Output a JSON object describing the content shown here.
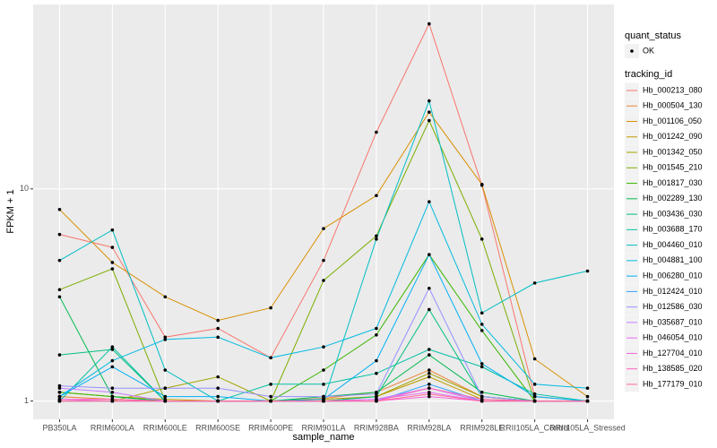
{
  "chart_data": {
    "type": "line",
    "log_y": true,
    "grid": true,
    "legend_position": "right",
    "points": true,
    "x_label": "sample_name",
    "y_label": "FPKM + 1",
    "point_legend": {
      "title": "quant_status",
      "levels": [
        "OK"
      ]
    },
    "legend_title": "tracking_id",
    "categories": [
      "PB350LA",
      "RRIM600LA",
      "RRIM600LE",
      "RRIM600SE",
      "RRIM600PE",
      "RRIM901LA",
      "RRIM928BA",
      "RRIM928LA",
      "RRIM928LE",
      "RRII105LA_Control",
      "RRII105LA_Stressed"
    ],
    "ylim": [
      0.82,
      74
    ],
    "yticks": [
      1,
      10
    ],
    "series": [
      {
        "name": "Hb_000213_080",
        "color": "#F8766D",
        "values": [
          6.1,
          5.3,
          2.0,
          2.2,
          1.6,
          4.6,
          18.5,
          60,
          10.4,
          1.05,
          1.0
        ]
      },
      {
        "name": "Hb_000504_130",
        "color": "#EA8331",
        "values": [
          1.05,
          1.02,
          1.0,
          1.0,
          1.0,
          1.03,
          1.1,
          1.4,
          1.05,
          1.0,
          1.0
        ]
      },
      {
        "name": "Hb_001106_050",
        "color": "#D89000",
        "values": [
          8.0,
          4.5,
          3.1,
          2.4,
          2.75,
          6.5,
          9.3,
          23,
          10.5,
          1.58,
          1.05
        ]
      },
      {
        "name": "Hb_001242_090",
        "color": "#C09B00",
        "values": [
          1.1,
          1.05,
          1.02,
          1.0,
          1.0,
          1.02,
          1.05,
          1.3,
          1.02,
          1.0,
          1.0
        ]
      },
      {
        "name": "Hb_001342_050",
        "color": "#A3A500",
        "values": [
          1.0,
          1.0,
          1.15,
          1.3,
          1.0,
          1.0,
          1.05,
          1.35,
          1.05,
          1.0,
          1.0
        ]
      },
      {
        "name": "Hb_001545_210",
        "color": "#7CAE00",
        "values": [
          3.35,
          4.2,
          1.0,
          1.0,
          1.0,
          3.7,
          6.0,
          21,
          5.8,
          1.0,
          1.0
        ]
      },
      {
        "name": "Hb_001817_030",
        "color": "#39B600",
        "values": [
          1.1,
          1.05,
          1.0,
          1.0,
          1.0,
          1.4,
          2.05,
          4.9,
          2.15,
          1.0,
          1.0
        ]
      },
      {
        "name": "Hb_002289_130",
        "color": "#00BB4E",
        "values": [
          3.1,
          1.05,
          1.0,
          1.0,
          1.0,
          1.05,
          1.1,
          1.65,
          1.1,
          1.0,
          1.0
        ]
      },
      {
        "name": "Hb_003436_030",
        "color": "#00BF7D",
        "values": [
          1.65,
          1.75,
          1.0,
          1.0,
          1.0,
          1.0,
          1.05,
          2.7,
          1.05,
          1.0,
          1.0
        ]
      },
      {
        "name": "Hb_003688_170",
        "color": "#00C1A3",
        "values": [
          1.0,
          1.8,
          1.0,
          1.0,
          1.2,
          1.2,
          1.35,
          1.75,
          1.45,
          1.08,
          1.0
        ]
      },
      {
        "name": "Hb_004460_010",
        "color": "#00BFC4",
        "values": [
          4.6,
          6.4,
          1.4,
          1.0,
          1.0,
          1.0,
          5.8,
          26,
          2.6,
          3.6,
          4.1
        ]
      },
      {
        "name": "Hb_004881_100",
        "color": "#00BAE0",
        "values": [
          1.05,
          1.55,
          1.95,
          2.0,
          1.6,
          1.8,
          2.2,
          8.7,
          2.3,
          1.2,
          1.15
        ]
      },
      {
        "name": "Hb_006280_010",
        "color": "#00B0F6",
        "values": [
          1.05,
          1.45,
          1.05,
          1.05,
          1.0,
          1.02,
          1.55,
          4.9,
          1.5,
          1.05,
          1.0
        ]
      },
      {
        "name": "Hb_012424_010",
        "color": "#35A2FF",
        "values": [
          1.0,
          1.0,
          1.0,
          1.0,
          1.0,
          1.0,
          1.0,
          1.2,
          1.0,
          1.0,
          1.0
        ]
      },
      {
        "name": "Hb_012586_030",
        "color": "#9590FF",
        "values": [
          1.18,
          1.15,
          1.15,
          1.15,
          1.05,
          1.05,
          1.08,
          3.4,
          1.05,
          1.0,
          1.0
        ]
      },
      {
        "name": "Hb_035687_010",
        "color": "#C77CFF",
        "values": [
          1.15,
          1.1,
          1.0,
          1.0,
          1.0,
          1.0,
          1.02,
          1.15,
          1.0,
          1.0,
          1.0
        ]
      },
      {
        "name": "Hb_046054_010",
        "color": "#E76BF3",
        "values": [
          1.02,
          1.0,
          1.0,
          1.0,
          1.0,
          1.0,
          1.02,
          1.1,
          1.0,
          1.0,
          1.0
        ]
      },
      {
        "name": "Hb_127704_010",
        "color": "#FA62DB",
        "values": [
          1.0,
          1.0,
          1.0,
          1.0,
          1.0,
          1.0,
          1.0,
          1.05,
          1.0,
          1.0,
          1.0
        ]
      },
      {
        "name": "Hb_138585_020",
        "color": "#FF62BC",
        "values": [
          1.02,
          1.02,
          1.0,
          1.0,
          1.0,
          1.0,
          1.0,
          1.15,
          1.02,
          1.0,
          1.0
        ]
      },
      {
        "name": "Hb_177179_010",
        "color": "#FF6C91",
        "values": [
          1.0,
          1.0,
          1.0,
          1.0,
          1.0,
          1.0,
          1.0,
          1.08,
          1.0,
          1.0,
          1.0
        ]
      }
    ]
  }
}
